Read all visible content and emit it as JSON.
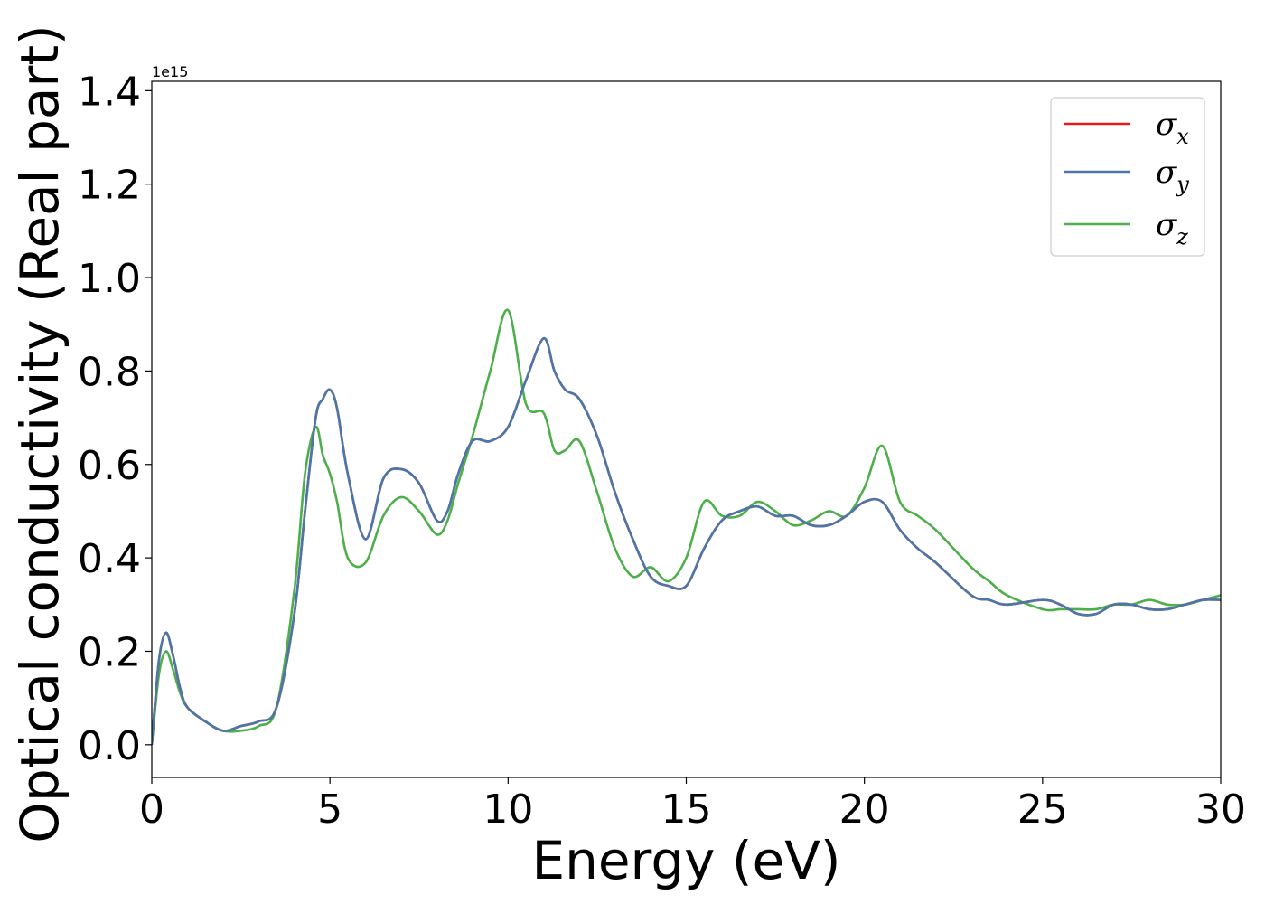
{
  "chart_data": {
    "type": "line",
    "title": "",
    "xlabel": "Energy (eV)",
    "ylabel": "Optical conductivity (Real part)",
    "y_offset_label": "1e15",
    "xlim": [
      0,
      30
    ],
    "ylim": [
      -0.07,
      1.42
    ],
    "xticks": [
      0,
      5,
      10,
      15,
      20,
      25,
      30
    ],
    "yticks": [
      0.0,
      0.2,
      0.4,
      0.6,
      0.8,
      1.0,
      1.2,
      1.4
    ],
    "xtick_labels": [
      "0",
      "5",
      "10",
      "15",
      "20",
      "25",
      "30"
    ],
    "ytick_labels": [
      "0.0",
      "0.2",
      "0.4",
      "0.6",
      "0.8",
      "1.0",
      "1.2",
      "1.4"
    ],
    "grid": false,
    "legend_position": "top-right",
    "x": [
      0.0,
      0.2,
      0.4,
      0.6,
      0.8,
      1.0,
      1.5,
      2.0,
      2.5,
      3.0,
      3.5,
      4.0,
      4.3,
      4.6,
      4.8,
      5.0,
      5.2,
      5.5,
      6.0,
      6.5,
      7.0,
      7.5,
      8.0,
      8.3,
      8.6,
      9.0,
      9.5,
      10.0,
      10.5,
      11.0,
      11.3,
      11.6,
      12.0,
      12.5,
      13.0,
      13.5,
      14.0,
      14.5,
      15.0,
      15.5,
      16.0,
      16.5,
      17.0,
      17.5,
      18.0,
      18.5,
      19.0,
      19.5,
      20.0,
      20.5,
      21.0,
      21.5,
      22.0,
      23.0,
      23.5,
      24.0,
      25.0,
      25.5,
      26.0,
      26.5,
      27.0,
      27.5,
      28.0,
      28.5,
      29.0,
      29.5,
      30.0
    ],
    "series": [
      {
        "name": "σx",
        "label_base": "σ",
        "label_sub": "x",
        "color": "#e41a1c",
        "values": [
          0.0,
          0.18,
          0.24,
          0.19,
          0.12,
          0.08,
          0.05,
          0.03,
          0.04,
          0.05,
          0.08,
          0.28,
          0.5,
          0.7,
          0.74,
          0.76,
          0.72,
          0.58,
          0.44,
          0.57,
          0.59,
          0.56,
          0.48,
          0.5,
          0.58,
          0.65,
          0.65,
          0.68,
          0.78,
          0.87,
          0.8,
          0.76,
          0.74,
          0.66,
          0.54,
          0.44,
          0.36,
          0.34,
          0.34,
          0.42,
          0.48,
          0.5,
          0.51,
          0.49,
          0.49,
          0.47,
          0.47,
          0.49,
          0.52,
          0.52,
          0.46,
          0.42,
          0.39,
          0.32,
          0.31,
          0.3,
          0.31,
          0.3,
          0.28,
          0.28,
          0.3,
          0.3,
          0.29,
          0.29,
          0.3,
          0.31,
          0.31
        ]
      },
      {
        "name": "σy",
        "label_base": "σ",
        "label_sub": "y",
        "color": "#4a77aa",
        "values": [
          0.0,
          0.18,
          0.24,
          0.19,
          0.12,
          0.08,
          0.05,
          0.03,
          0.04,
          0.05,
          0.08,
          0.28,
          0.5,
          0.7,
          0.74,
          0.76,
          0.72,
          0.58,
          0.44,
          0.57,
          0.59,
          0.56,
          0.48,
          0.5,
          0.58,
          0.65,
          0.65,
          0.68,
          0.78,
          0.87,
          0.8,
          0.76,
          0.74,
          0.66,
          0.54,
          0.44,
          0.36,
          0.34,
          0.34,
          0.42,
          0.48,
          0.5,
          0.51,
          0.49,
          0.49,
          0.47,
          0.47,
          0.49,
          0.52,
          0.52,
          0.46,
          0.42,
          0.39,
          0.32,
          0.31,
          0.3,
          0.31,
          0.3,
          0.28,
          0.28,
          0.3,
          0.3,
          0.29,
          0.29,
          0.3,
          0.31,
          0.31
        ]
      },
      {
        "name": "σz",
        "label_base": "σ",
        "label_sub": "z",
        "color": "#4daf4a",
        "values": [
          0.0,
          0.15,
          0.2,
          0.16,
          0.11,
          0.08,
          0.05,
          0.03,
          0.03,
          0.04,
          0.08,
          0.33,
          0.58,
          0.68,
          0.62,
          0.58,
          0.52,
          0.4,
          0.39,
          0.49,
          0.53,
          0.5,
          0.45,
          0.48,
          0.56,
          0.66,
          0.8,
          0.93,
          0.73,
          0.71,
          0.63,
          0.63,
          0.65,
          0.54,
          0.42,
          0.36,
          0.38,
          0.35,
          0.4,
          0.52,
          0.49,
          0.49,
          0.52,
          0.5,
          0.47,
          0.48,
          0.5,
          0.49,
          0.55,
          0.64,
          0.52,
          0.49,
          0.46,
          0.38,
          0.35,
          0.32,
          0.29,
          0.29,
          0.29,
          0.29,
          0.3,
          0.3,
          0.31,
          0.3,
          0.3,
          0.31,
          0.32
        ]
      }
    ]
  }
}
